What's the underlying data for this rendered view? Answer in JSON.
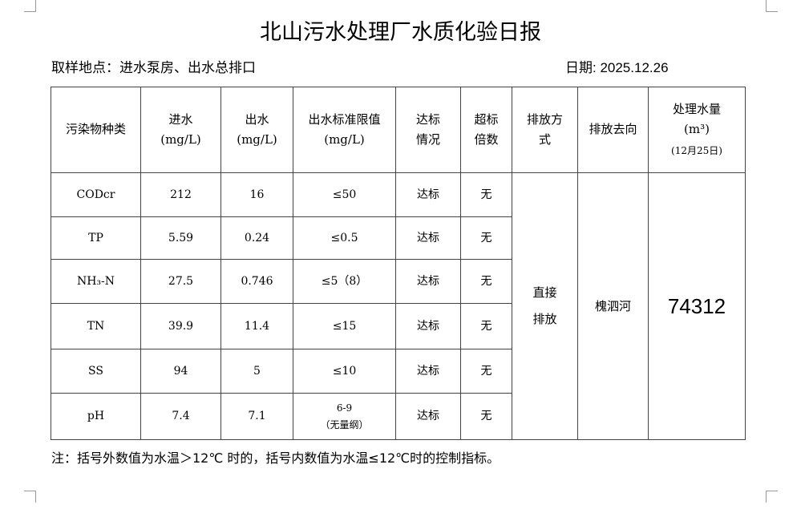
{
  "title": "北山污水处理厂水质化验日报",
  "location": "取样地点：进水泵房、出水总排口",
  "date": "日期: 2025.12.26",
  "headers": {
    "pollutant": "污染物种类",
    "inflow": "进水",
    "inflow_unit": "(mg/L)",
    "outflow": "出水",
    "outflow_unit": "(mg/L)",
    "limit": "出水标准限值",
    "limit_unit": "(mg/L)",
    "status": "达标情况",
    "exceed": "超标倍数",
    "method": "排放方式",
    "dest": "排放去向",
    "volume": "处理水量",
    "volume_unit": "(m³)",
    "volume_date": "(12月25日)"
  },
  "rows": [
    {
      "name": "CODcr",
      "in": "212",
      "out": "16",
      "limit": "≤50",
      "limit2": "",
      "status": "达标",
      "exceed": "无"
    },
    {
      "name": "TP",
      "in": "5.59",
      "out": "0.24",
      "limit": "≤0.5",
      "limit2": "",
      "status": "达标",
      "exceed": "无"
    },
    {
      "name": "NH₃-N",
      "in": "27.5",
      "out": "0.746",
      "limit": "≤5（8）",
      "limit2": "",
      "status": "达标",
      "exceed": "无"
    },
    {
      "name": "TN",
      "in": "39.9",
      "out": "11.4",
      "limit": "≤15",
      "limit2": "",
      "status": "达标",
      "exceed": "无"
    },
    {
      "name": "SS",
      "in": "94",
      "out": "5",
      "limit": "≤10",
      "limit2": "",
      "status": "达标",
      "exceed": "无"
    },
    {
      "name": "pH",
      "in": "7.4",
      "out": "7.1",
      "limit": "6-9",
      "limit2": "（无量纲）",
      "status": "达标",
      "exceed": "无"
    }
  ],
  "method": "直接排放",
  "dest": "槐泗河",
  "volume": "74312",
  "note": "注：括号外数值为水温＞12℃ 时的，括号内数值为水温≤12℃时的控制指标。"
}
